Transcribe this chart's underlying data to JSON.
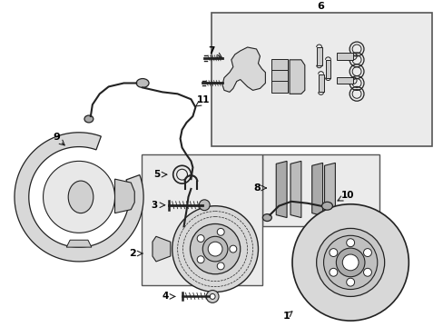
{
  "background_color": "#ffffff",
  "line_color": "#222222",
  "shaded_color": "#e8e8e8",
  "figsize": [
    4.89,
    3.6
  ],
  "dpi": 100
}
